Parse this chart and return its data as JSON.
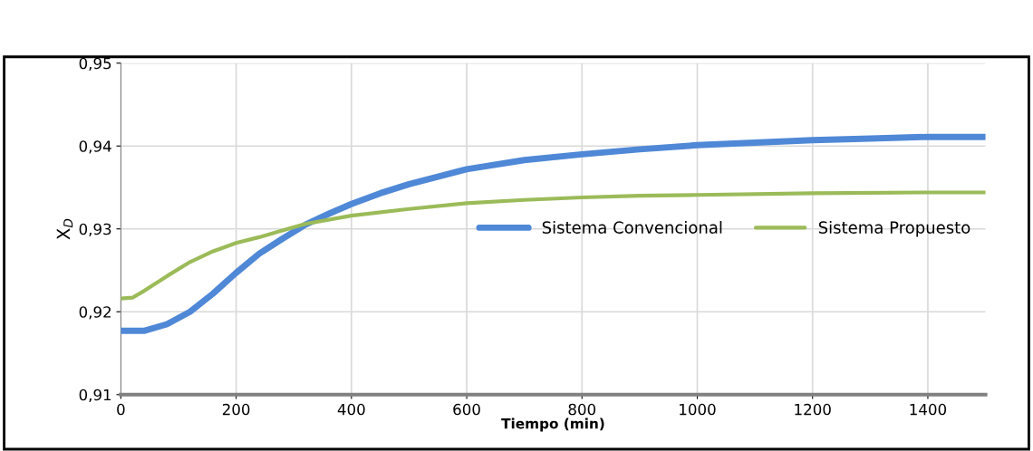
{
  "chart_data": {
    "type": "line",
    "xlabel": "Tiempo (min)",
    "ylabel": "X$_{D}$",
    "xlim": [
      0,
      1500
    ],
    "xticks": [
      0,
      200,
      400,
      600,
      800,
      1000,
      1200,
      1400
    ],
    "ylim": [
      0.91,
      0.95
    ],
    "yticks": [
      {
        "value": 0.91,
        "label": "0,91"
      },
      {
        "value": 0.92,
        "label": "0,92"
      },
      {
        "value": 0.93,
        "label": "0,93"
      },
      {
        "value": 0.94,
        "label": "0,94"
      },
      {
        "value": 0.95,
        "label": "0,95"
      }
    ],
    "grid": true,
    "legend": "right",
    "series": [
      {
        "name": "Sistema Convencional",
        "color": "#4f88d6",
        "x": [
          0,
          40,
          80,
          120,
          160,
          200,
          240,
          280,
          320,
          360,
          400,
          450,
          500,
          550,
          600,
          700,
          800,
          900,
          1000,
          1100,
          1200,
          1300,
          1400,
          1500
        ],
        "values": [
          0.9177,
          0.9177,
          0.9185,
          0.92,
          0.9222,
          0.9247,
          0.927,
          0.9288,
          0.9305,
          0.9318,
          0.933,
          0.9343,
          0.9354,
          0.9363,
          0.9372,
          0.9383,
          0.939,
          0.9396,
          0.9401,
          0.9404,
          0.9407,
          0.9409,
          0.9411,
          0.9411
        ]
      },
      {
        "name": "Sistema Propuesto",
        "color": "#9bbb59",
        "x": [
          0,
          20,
          40,
          80,
          120,
          160,
          200,
          240,
          280,
          320,
          400,
          500,
          600,
          700,
          800,
          900,
          1000,
          1200,
          1400,
          1500
        ],
        "values": [
          0.9216,
          0.9217,
          0.9225,
          0.9243,
          0.926,
          0.9273,
          0.9283,
          0.929,
          0.9298,
          0.9306,
          0.9316,
          0.9324,
          0.9331,
          0.9335,
          0.9338,
          0.934,
          0.9341,
          0.9343,
          0.9344,
          0.9344
        ]
      }
    ]
  }
}
